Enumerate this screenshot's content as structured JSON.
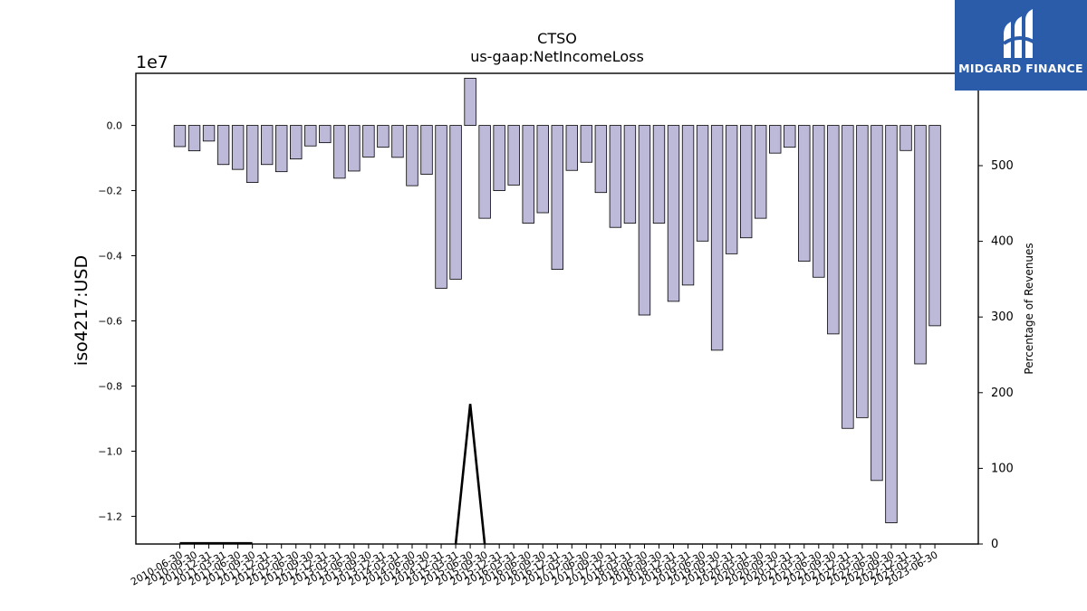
{
  "chart_data": {
    "type": "bar",
    "title": "CTSO",
    "subtitle": "us-gaap:NetIncomeLoss",
    "ylabel": "iso4217:USD",
    "y_offset_label": "1e7",
    "y2label": "Percentage of Revenues",
    "ylim": [
      -12850000,
      1600000
    ],
    "y2lim": [
      0,
      622
    ],
    "yticks": [
      "0.0",
      "−0.2",
      "−0.4",
      "−0.6",
      "−0.8",
      "−1.0",
      "−1.2"
    ],
    "ytick_values": [
      0,
      -2000000,
      -4000000,
      -6000000,
      -8000000,
      -10000000,
      -12000000
    ],
    "y2ticks": [
      "0",
      "100",
      "200",
      "300",
      "400",
      "500"
    ],
    "y2tick_values": [
      0,
      100,
      200,
      300,
      400,
      500
    ],
    "categories": [
      "2010-06-30",
      "2010-09-30",
      "2010-12-31",
      "2011-03-31",
      "2011-06-30",
      "2011-09-30",
      "2011-12-31",
      "2012-03-31",
      "2012-06-30",
      "2012-09-30",
      "2012-12-31",
      "2013-03-31",
      "2013-06-30",
      "2013-09-30",
      "2013-12-31",
      "2014-03-31",
      "2014-06-30",
      "2014-09-30",
      "2014-12-31",
      "2015-03-31",
      "2015-06-30",
      "2015-09-30",
      "2015-12-31",
      "2016-03-31",
      "2016-06-30",
      "2016-09-30",
      "2016-12-31",
      "2017-03-31",
      "2017-06-30",
      "2017-09-30",
      "2017-12-31",
      "2018-03-31",
      "2018-06-30",
      "2018-09-30",
      "2018-12-31",
      "2019-03-31",
      "2019-06-30",
      "2019-09-30",
      "2019-12-31",
      "2020-03-31",
      "2020-06-30",
      "2020-09-30",
      "2020-12-31",
      "2021-03-31",
      "2021-06-30",
      "2021-09-30",
      "2021-12-31",
      "2022-03-31",
      "2022-06-30",
      "2022-09-30",
      "2022-12-31",
      "2023-03-31",
      "2023-06-30"
    ],
    "series": [
      {
        "values": [
          -650000,
          -780000,
          -480000,
          -1200000,
          -1350000,
          -1750000,
          -1200000,
          -1420000,
          -1030000,
          -630000,
          -530000,
          -1620000,
          -1400000,
          -970000,
          -670000,
          -980000,
          -1850000,
          -1500000,
          -5000000,
          -4720000,
          1450000,
          -2850000,
          -2000000,
          -1830000,
          -3000000,
          -2680000,
          -4420000,
          -1380000,
          -1130000,
          -2060000,
          -3130000,
          -3000000,
          -5820000,
          -3000000,
          -5400000,
          -4900000,
          -3550000,
          -6900000,
          -3940000,
          -3450000,
          -2850000,
          -850000,
          -670000,
          -4170000,
          -4660000,
          -6400000,
          -9300000,
          -8970000,
          -10900000,
          -12200000,
          -770000,
          -7320000,
          -6150000
        ],
        "color": "#bcbad8",
        "edge_color": "#000000"
      },
      {
        "axis": "secondary",
        "type": "line",
        "values": [
          1,
          1,
          1,
          1,
          1,
          1,
          null,
          null,
          null,
          null,
          null,
          null,
          null,
          null,
          null,
          null,
          null,
          null,
          null,
          0,
          185,
          0,
          null,
          null,
          null,
          null,
          null,
          null,
          null,
          null,
          null,
          null,
          null,
          null,
          null,
          null,
          null,
          null,
          null,
          null,
          null,
          null,
          null,
          null,
          null,
          null,
          null,
          null,
          null,
          null,
          null,
          null,
          null
        ],
        "color": "#000000"
      }
    ],
    "grid": false,
    "legend": "none"
  },
  "logo": {
    "text": "MIDGARD FINANCE",
    "background": "#2a5caa"
  }
}
